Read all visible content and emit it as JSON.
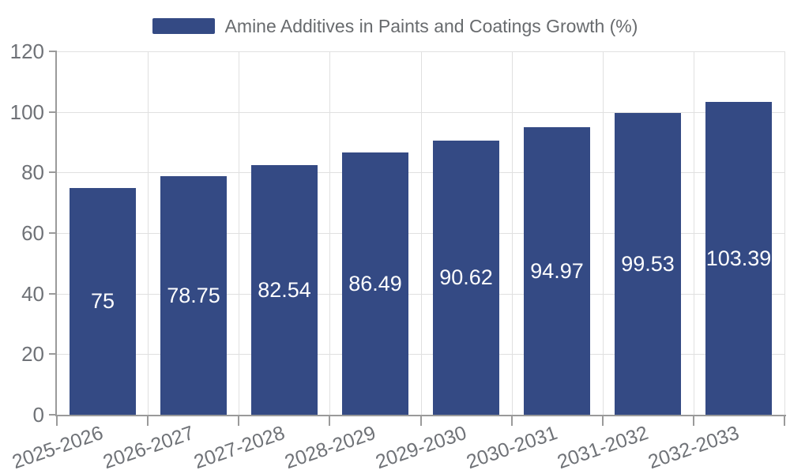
{
  "legend": {
    "label": "Amine Additives in Paints and Coatings Growth (%)",
    "swatch_color": "#344a84"
  },
  "chart_data": {
    "type": "bar",
    "title": "Amine Additives in Paints and Coatings Growth (%)",
    "categories": [
      "2025-2026",
      "2026-2027",
      "2027-2028",
      "2028-2029",
      "2029-2030",
      "2030-2031",
      "2031-2032",
      "2032-2033"
    ],
    "values": [
      75,
      78.75,
      82.54,
      86.49,
      90.62,
      94.97,
      99.53,
      103.39
    ],
    "value_labels": [
      "75",
      "78.75",
      "82.54",
      "86.49",
      "90.62",
      "94.97",
      "99.53",
      "103.39"
    ],
    "xlabel": "",
    "ylabel": "",
    "ylim": [
      0,
      120
    ],
    "yticks": [
      0,
      20,
      40,
      60,
      80,
      100,
      120
    ],
    "ytick_labels": [
      "0",
      "20",
      "40",
      "60",
      "80",
      "100",
      "120"
    ],
    "grid": true,
    "legend_position": "top",
    "value_label_position": "inside-center",
    "bar_color": "#344a84",
    "value_label_color": "#ffffff",
    "axis_color": "#9a9a9a",
    "grid_color": "#e0e0e0",
    "tick_label_color": "#6f7277",
    "xtick_label_rotation_deg": -19
  }
}
